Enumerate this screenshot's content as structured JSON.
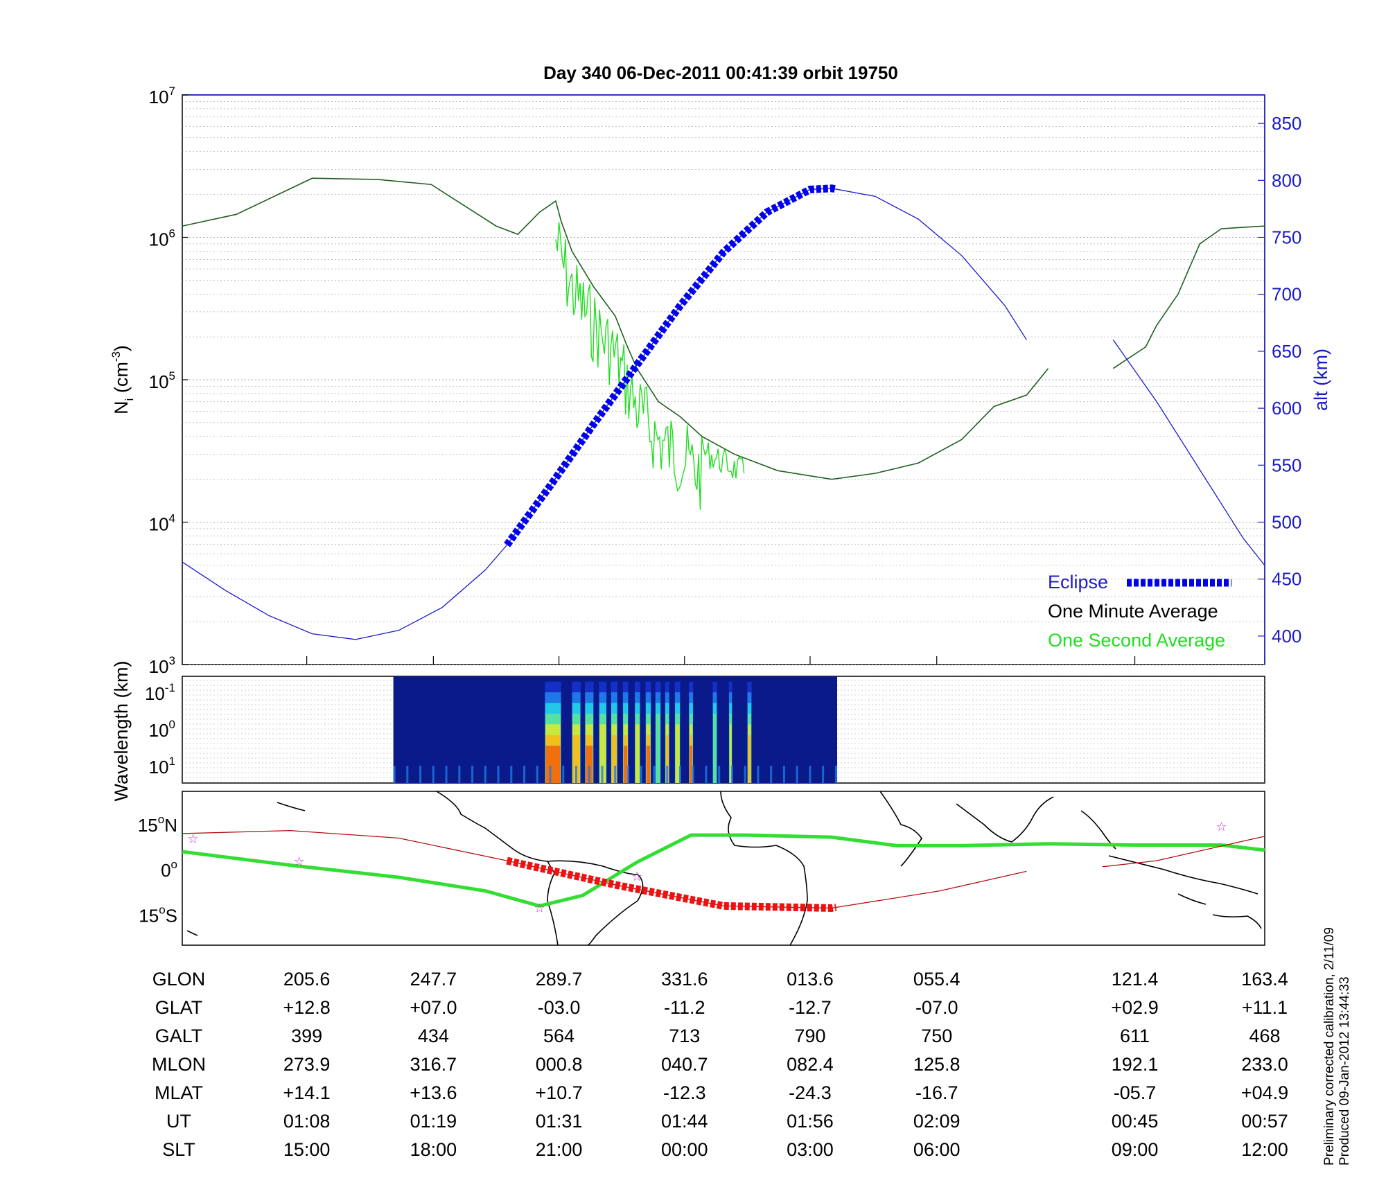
{
  "title": "Day 340  06-Dec-2011 00:41:39   orbit 19750",
  "chart_data": [
    {
      "type": "line",
      "panel": "ion-density",
      "ylabel": "N_i (cm^-3)",
      "ylabel_main": "N",
      "ylabel_sub": "i",
      "ylabel_rest": " (cm",
      "ylabel_sup": "-3",
      "ylabel_close": ")",
      "yscale": "log",
      "ylim": [
        1000,
        10000000
      ],
      "left_ticks": [
        {
          "base": "10",
          "exp": "7",
          "value": 10000000
        },
        {
          "base": "10",
          "exp": "6",
          "value": 1000000
        },
        {
          "base": "10",
          "exp": "5",
          "value": 100000
        },
        {
          "base": "10",
          "exp": "4",
          "value": 10000
        },
        {
          "base": "10",
          "exp": "3",
          "value": 1000
        }
      ],
      "y2label": "alt (km)",
      "y2lim": [
        375,
        875
      ],
      "y2_ticks": [
        "850",
        "800",
        "750",
        "700",
        "650",
        "600",
        "550",
        "500",
        "450",
        "400"
      ],
      "y2_values": [
        850,
        800,
        750,
        700,
        650,
        600,
        550,
        500,
        450,
        400
      ],
      "x": [
        0,
        0.06,
        0.12,
        0.18,
        0.24,
        0.3,
        0.36,
        0.42,
        0.48,
        0.54,
        0.6,
        0.66,
        0.72,
        0.78,
        0.84,
        0.9,
        0.96,
        1.0
      ],
      "series": [
        {
          "name": "One Minute Average",
          "color": "#1f5f1f",
          "x": [
            0,
            0.05,
            0.1,
            0.12,
            0.18,
            0.23,
            0.29,
            0.31,
            0.33,
            0.345,
            0.35,
            0.36,
            0.38,
            0.4,
            0.41,
            0.42,
            0.44,
            0.46,
            0.48,
            0.51,
            0.55,
            0.6,
            0.64,
            0.68,
            0.72,
            0.75,
            0.78,
            0.8,
            0.83,
            0.86,
            0.89,
            0.9,
            0.92,
            0.94,
            0.96,
            1.0
          ],
          "y": [
            1200000,
            1450000,
            2200000,
            2600000,
            2550000,
            2350000,
            1200000,
            1050000,
            1500000,
            1800000,
            1300000,
            800000,
            450000,
            280000,
            180000,
            120000,
            70000,
            55000,
            40000,
            30000,
            23000,
            20000,
            22000,
            26000,
            38000,
            65000,
            78000,
            120000,
            null,
            120000,
            170000,
            240000,
            400000,
            900000,
            1150000,
            1200000
          ]
        },
        {
          "name": "One Second Average",
          "color": "#22dd22"
        },
        {
          "name": "alt (km)",
          "color": "#1a1acc",
          "x": [
            0,
            0.04,
            0.08,
            0.12,
            0.16,
            0.2,
            0.24,
            0.28,
            0.3,
            0.34,
            0.38,
            0.42,
            0.46,
            0.5,
            0.54,
            0.58,
            0.6,
            0.64,
            0.68,
            0.72,
            0.76,
            0.78,
            0.84,
            0.86,
            0.9,
            0.94,
            0.98,
            1.0
          ],
          "y": [
            465,
            440,
            418,
            402,
            397,
            405,
            425,
            458,
            480,
            532,
            586,
            638,
            690,
            737,
            772,
            792,
            793,
            786,
            766,
            734,
            690,
            660,
            null,
            660,
            606,
            546,
            486,
            462
          ]
        },
        {
          "name": "Eclipse",
          "color": "#0000ee",
          "x_range": [
            0.3,
            0.605
          ]
        }
      ],
      "legend": [
        "Eclipse",
        "One Minute Average",
        "One Second Average"
      ],
      "legend_position": "bottom-right",
      "grid": true
    },
    {
      "type": "heatmap",
      "panel": "spectrogram",
      "ylabel": "Wavelength (km)",
      "yscale": "log",
      "y_ticks": [
        {
          "base": "10",
          "exp": "-1"
        },
        {
          "base": "10",
          "exp": "0"
        },
        {
          "base": "10",
          "exp": "1"
        }
      ],
      "x_range": [
        0.195,
        0.605
      ]
    },
    {
      "type": "line",
      "panel": "map",
      "y_ticks": [
        {
          "label": "15",
          "deg": "o",
          "hemi": "N",
          "value": 15
        },
        {
          "label": "0",
          "deg": "o",
          "hemi": "",
          "value": 0
        },
        {
          "label": "15",
          "deg": "o",
          "hemi": "S",
          "value": -15
        }
      ],
      "ylim": [
        -25,
        26
      ],
      "series": [
        {
          "name": "ground track",
          "color": "#b01010",
          "x": [
            0,
            0.1,
            0.2,
            0.3,
            0.4,
            0.5,
            0.6,
            0.7,
            0.78,
            null,
            0.85,
            0.9,
            1.0
          ],
          "y": [
            12,
            13,
            10.5,
            3,
            -5,
            -12,
            -12.7,
            -7,
            -0.5,
            null,
            1,
            3,
            11.1
          ]
        },
        {
          "name": "magnetic equator",
          "color": "#33dd33",
          "x": [
            0,
            0.1,
            0.2,
            0.28,
            0.33,
            0.37,
            0.42,
            0.47,
            0.52,
            0.6,
            0.66,
            0.72,
            0.8,
            0.88,
            0.96,
            1.0
          ],
          "y": [
            6,
            1.5,
            -2.5,
            -7,
            -12,
            -8.5,
            2.5,
            11.5,
            11.5,
            10.8,
            8,
            8,
            8.6,
            8.2,
            8.2,
            6.5
          ]
        },
        {
          "name": "Eclipse",
          "color": "#ee1111",
          "x_range": [
            0.3,
            0.605
          ]
        }
      ],
      "stars": [
        {
          "x": 0.01,
          "y": 10.5
        },
        {
          "x": 0.108,
          "y": 3
        },
        {
          "x": 0.33,
          "y": -12.5
        },
        {
          "x": 0.42,
          "y": -2
        },
        {
          "x": 0.96,
          "y": 14.5
        }
      ]
    }
  ],
  "table": {
    "rows": [
      {
        "label": "GLON",
        "values": [
          "205.6",
          "247.7",
          "289.7",
          "331.6",
          "013.6",
          "055.4",
          "121.4",
          "163.4"
        ]
      },
      {
        "label": "GLAT",
        "values": [
          "+12.8",
          "+07.0",
          "-03.0",
          "-11.2",
          "-12.7",
          "-07.0",
          "+02.9",
          "+11.1"
        ]
      },
      {
        "label": "GALT",
        "values": [
          "399",
          "434",
          "564",
          "713",
          "790",
          "750",
          "611",
          "468"
        ]
      },
      {
        "label": "MLON",
        "values": [
          "273.9",
          "316.7",
          "000.8",
          "040.7",
          "082.4",
          "125.8",
          "192.1",
          "233.0"
        ]
      },
      {
        "label": "MLAT",
        "values": [
          "+14.1",
          "+13.6",
          "+10.7",
          "-12.3",
          "-24.3",
          "-16.7",
          "-05.7",
          "+04.9"
        ]
      },
      {
        "label": "UT",
        "values": [
          "01:08",
          "01:19",
          "01:31",
          "01:44",
          "01:56",
          "02:09",
          "00:45",
          "00:57"
        ]
      },
      {
        "label": "SLT",
        "values": [
          "15:00",
          "18:00",
          "21:00",
          "00:00",
          "03:00",
          "06:00",
          "09:00",
          "12:00"
        ]
      }
    ]
  },
  "side_note": {
    "line1": "Preliminary corrected calibration, 2/11/09",
    "line2": "Produced 09-Jan-2012 13:44:33"
  },
  "colors": {
    "density_minute": "#1f5f1f",
    "density_second": "#22dd22",
    "altitude": "#1a1acc",
    "eclipse": "#0000ee",
    "track": "#b01010",
    "map_eclipse": "#ee1111",
    "mag_equator": "#33dd33",
    "spectro_bg": "#0a1a8a"
  }
}
